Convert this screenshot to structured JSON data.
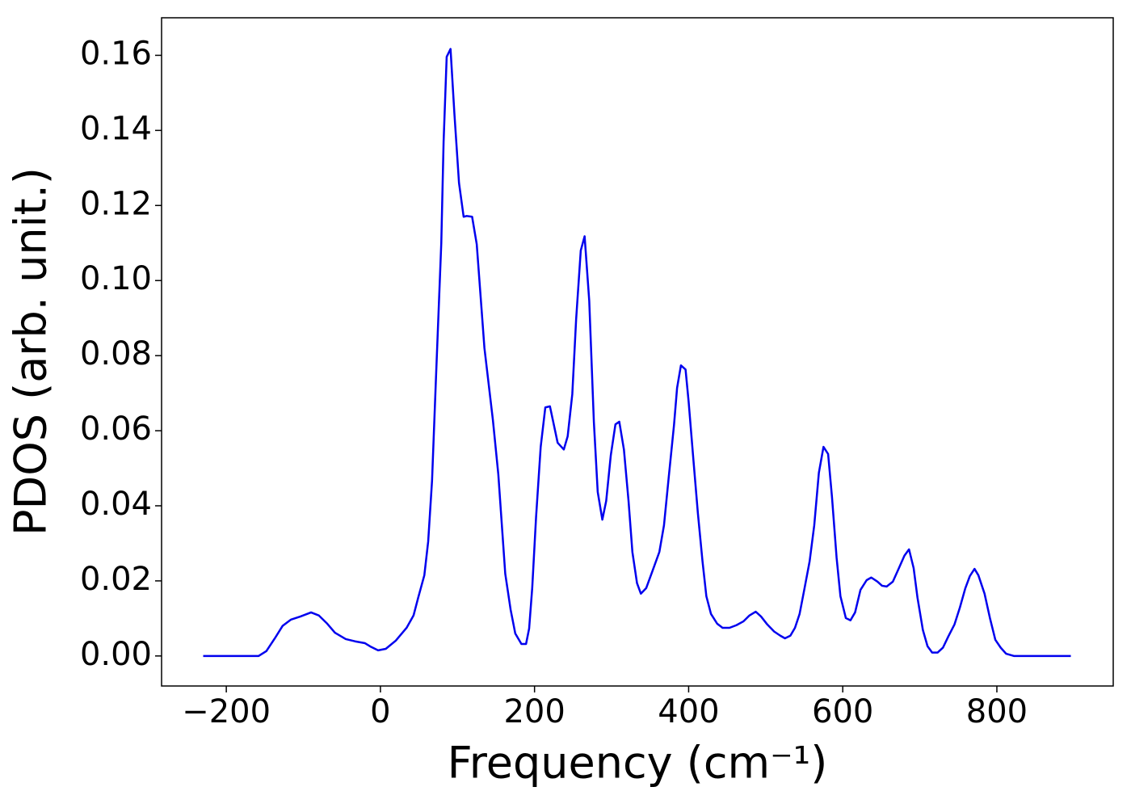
{
  "chart_data": {
    "type": "line",
    "xlabel": "Frequency (cm⁻¹)",
    "ylabel": "PDOS (arb. unit.)",
    "x": [
      -230,
      -158,
      -148,
      -137,
      -127,
      -116,
      -104,
      -90,
      -80,
      -69,
      -59,
      -45,
      -33,
      -20,
      -12,
      -3,
      7,
      20,
      34,
      43,
      49,
      57,
      62,
      67,
      72,
      79,
      82,
      86,
      91,
      96,
      102,
      108,
      112,
      119,
      125,
      135,
      146,
      153,
      162,
      169,
      175,
      183,
      189,
      193,
      197,
      202,
      208,
      214,
      220,
      230,
      238,
      243,
      249,
      254,
      260,
      265,
      271,
      277,
      282,
      288,
      293,
      299,
      305,
      310,
      316,
      322,
      327,
      333,
      338,
      345,
      353,
      362,
      368,
      374,
      381,
      385,
      390,
      396,
      400,
      406,
      412,
      418,
      423,
      429,
      437,
      444,
      453,
      462,
      471,
      479,
      487,
      494,
      502,
      511,
      519,
      525,
      532,
      538,
      544,
      550,
      557,
      563,
      569,
      575,
      581,
      586,
      592,
      597,
      604,
      610,
      616,
      623,
      631,
      637,
      645,
      651,
      657,
      665,
      672,
      680,
      686,
      692,
      697,
      704,
      710,
      716,
      723,
      730,
      737,
      745,
      752,
      759,
      765,
      771,
      776,
      784,
      791,
      798,
      805,
      812,
      822,
      896
    ],
    "series": [
      {
        "name": "PDOS",
        "color": "#0000ee",
        "values": [
          0,
          0,
          0.0013,
          0.0047,
          0.008,
          0.0097,
          0.0105,
          0.0116,
          0.0108,
          0.0086,
          0.0062,
          0.0045,
          0.0039,
          0.0034,
          0.0024,
          0.0015,
          0.0019,
          0.0041,
          0.0075,
          0.0108,
          0.0155,
          0.0215,
          0.0305,
          0.0467,
          0.0735,
          0.11,
          0.137,
          0.1596,
          0.1617,
          0.1445,
          0.126,
          0.117,
          0.1172,
          0.117,
          0.1097,
          0.082,
          0.0628,
          0.0484,
          0.0219,
          0.0123,
          0.006,
          0.0032,
          0.0032,
          0.0073,
          0.0181,
          0.037,
          0.0557,
          0.0662,
          0.0665,
          0.0568,
          0.055,
          0.0585,
          0.0697,
          0.0897,
          0.108,
          0.1118,
          0.0946,
          0.0624,
          0.0437,
          0.0363,
          0.0413,
          0.0535,
          0.0617,
          0.0624,
          0.055,
          0.0413,
          0.0277,
          0.0194,
          0.0166,
          0.0181,
          0.0226,
          0.0277,
          0.0348,
          0.0473,
          0.0615,
          0.0714,
          0.0774,
          0.0763,
          0.0677,
          0.0527,
          0.038,
          0.0252,
          0.0159,
          0.0112,
          0.0086,
          0.0075,
          0.0075,
          0.0082,
          0.0092,
          0.0108,
          0.0118,
          0.0105,
          0.0084,
          0.0065,
          0.0054,
          0.0047,
          0.0054,
          0.0075,
          0.0112,
          0.0176,
          0.0252,
          0.0348,
          0.0488,
          0.0557,
          0.0538,
          0.0424,
          0.0262,
          0.0159,
          0.0101,
          0.0095,
          0.0116,
          0.0176,
          0.0202,
          0.0209,
          0.0198,
          0.0187,
          0.0185,
          0.0198,
          0.023,
          0.0267,
          0.0284,
          0.0234,
          0.0155,
          0.0069,
          0.0026,
          0.0009,
          0.0009,
          0.0022,
          0.0052,
          0.0084,
          0.0129,
          0.018,
          0.0213,
          0.0232,
          0.0215,
          0.0166,
          0.0101,
          0.0043,
          0.0022,
          0.0006,
          0,
          0
        ]
      }
    ],
    "xlim": [
      -284,
      951
    ],
    "ylim": [
      -0.008,
      0.17
    ],
    "xticks": [
      {
        "value": -200,
        "label": "−200"
      },
      0,
      200,
      400,
      600,
      800
    ],
    "yticks": [
      {
        "value": 0,
        "label": "0.00"
      },
      {
        "value": 0.02,
        "label": "0.02"
      },
      {
        "value": 0.04,
        "label": "0.04"
      },
      {
        "value": 0.06,
        "label": "0.06"
      },
      {
        "value": 0.08,
        "label": "0.08"
      },
      {
        "value": 0.1,
        "label": "0.10"
      },
      {
        "value": 0.12,
        "label": "0.12"
      },
      {
        "value": 0.14,
        "label": "0.14"
      },
      {
        "value": 0.16,
        "label": "0.16"
      }
    ]
  }
}
